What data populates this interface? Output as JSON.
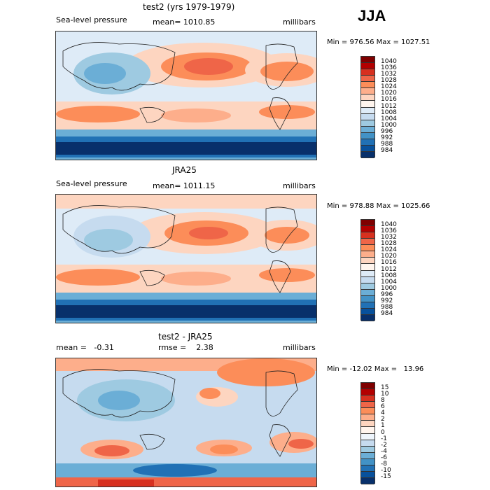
{
  "header": {
    "season": "JJA"
  },
  "panels": [
    {
      "title": "test2 (yrs 1979-1979)",
      "left_label": "Sea-level pressure",
      "center_label": "mean= 1010.85",
      "right_label": "millibars",
      "minmax": "Min = 976.56 Max = 1027.51",
      "colorbar": {
        "labels": [
          "1040",
          "1036",
          "1032",
          "1028",
          "1024",
          "1020",
          "1016",
          "1012",
          "1008",
          "1004",
          "1000",
          "996",
          "992",
          "988",
          "984"
        ],
        "colors": [
          "#7f0000",
          "#b30000",
          "#d7301f",
          "#ef6548",
          "#fc8d59",
          "#fdae8b",
          "#fdd5c0",
          "#fff5ee",
          "#deebf7",
          "#c6dbef",
          "#9ecae1",
          "#6baed6",
          "#4292c6",
          "#2171b5",
          "#08519c",
          "#08306b"
        ]
      }
    },
    {
      "title": "JRA25",
      "left_label": "Sea-level pressure",
      "center_label": "mean= 1011.15",
      "right_label": "millibars",
      "minmax": "Min = 978.88 Max = 1025.66",
      "colorbar": {
        "labels": [
          "1040",
          "1036",
          "1032",
          "1028",
          "1024",
          "1020",
          "1016",
          "1012",
          "1008",
          "1004",
          "1000",
          "996",
          "992",
          "988",
          "984"
        ],
        "colors": [
          "#7f0000",
          "#b30000",
          "#d7301f",
          "#ef6548",
          "#fc8d59",
          "#fdae8b",
          "#fdd5c0",
          "#fff5ee",
          "#deebf7",
          "#c6dbef",
          "#9ecae1",
          "#6baed6",
          "#4292c6",
          "#2171b5",
          "#08519c",
          "#08306b"
        ]
      }
    },
    {
      "title": "test2 - JRA25",
      "left_label": "mean =   -0.31",
      "center_label": "rmse =    2.38",
      "right_label": "millibars",
      "minmax": "Min = -12.02 Max =   13.96",
      "colorbar": {
        "labels": [
          "15",
          "10",
          "8",
          "6",
          "4",
          "2",
          "1",
          "0",
          "-1",
          "-2",
          "-4",
          "-6",
          "-8",
          "-10",
          "-15"
        ],
        "colors": [
          "#7f0000",
          "#b30000",
          "#d7301f",
          "#ef6548",
          "#fc8d59",
          "#fdae8b",
          "#fdd5c0",
          "#fff5ee",
          "#eef5fc",
          "#c6dbef",
          "#9ecae1",
          "#6baed6",
          "#4292c6",
          "#2171b5",
          "#08519c",
          "#08306b"
        ]
      }
    }
  ],
  "map_palette": {
    "high": "#ef6548",
    "mid_high": "#fdae8b",
    "neutral": "#fdd5c0",
    "light_blue": "#deebf7",
    "blue": "#9ecae1",
    "deep_blue": "#2171b5",
    "darkest": "#08306b"
  }
}
